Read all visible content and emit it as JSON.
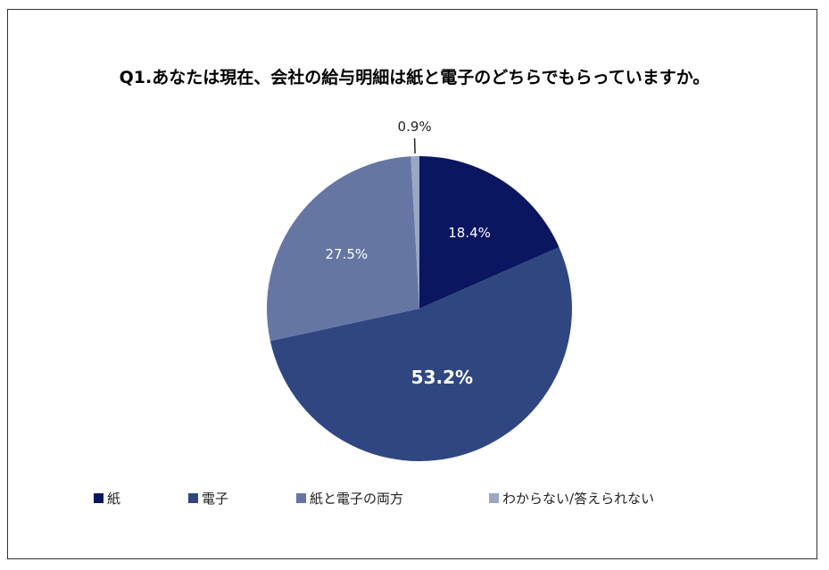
{
  "chart_data": {
    "type": "pie",
    "title": "Q1.あなたは現在、会社の給与明細は紙と電子のどちらでもらっていますか。",
    "categories": [
      "紙",
      "電子",
      "紙と電子の両方",
      "わからない/答えられない"
    ],
    "values": [
      18.4,
      53.2,
      27.5,
      0.9
    ],
    "labels": [
      "18.4%",
      "53.2%",
      "27.5%",
      "0.9%"
    ],
    "colors": [
      "#0b1660",
      "#2f4681",
      "#6676a3",
      "#99a7c5"
    ],
    "start": "12 o'clock, clockwise",
    "legend_position": "bottom"
  }
}
